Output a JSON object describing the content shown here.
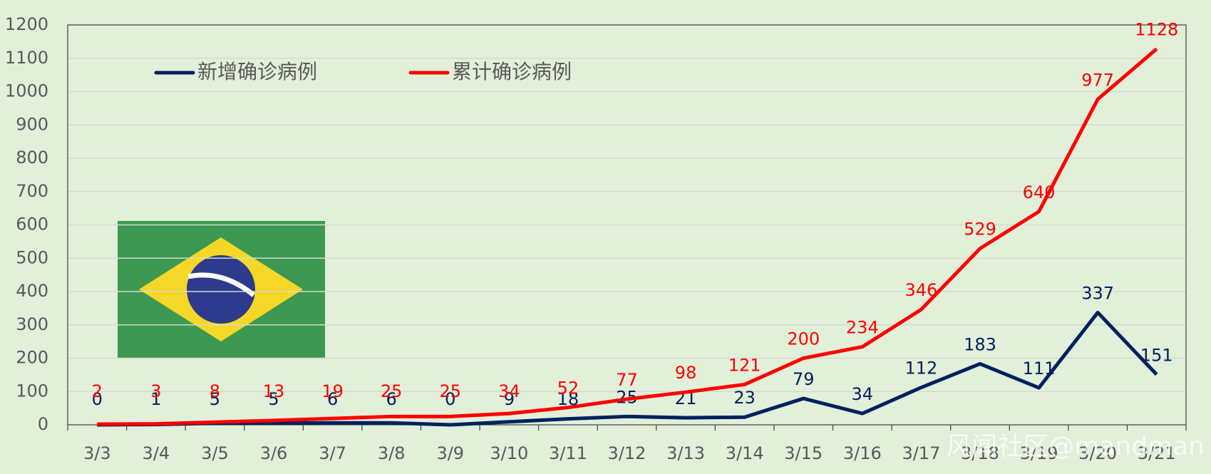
{
  "chart_data": {
    "type": "line",
    "categories": [
      "3/3",
      "3/4",
      "3/5",
      "3/6",
      "3/7",
      "3/8",
      "3/9",
      "3/10",
      "3/11",
      "3/12",
      "3/13",
      "3/14",
      "3/15",
      "3/16",
      "3/17",
      "3/18",
      "3/19",
      "3/20",
      "3/21"
    ],
    "series": [
      {
        "name": "新增确诊病例",
        "color": "#002060",
        "values": [
          0,
          1,
          5,
          5,
          6,
          6,
          0,
          9,
          18,
          25,
          21,
          23,
          79,
          34,
          112,
          183,
          111,
          337,
          151
        ]
      },
      {
        "name": "累计确诊病例",
        "color": "#ff0000",
        "values": [
          2,
          3,
          8,
          13,
          19,
          25,
          25,
          34,
          52,
          77,
          98,
          121,
          200,
          234,
          346,
          529,
          640,
          977,
          1128
        ]
      }
    ],
    "ylim": [
      0,
      1200
    ],
    "yticks": [
      0,
      100,
      200,
      300,
      400,
      500,
      600,
      700,
      800,
      900,
      1000,
      1100,
      1200
    ],
    "grid": true,
    "watermark": "风闻社区@mandman"
  }
}
